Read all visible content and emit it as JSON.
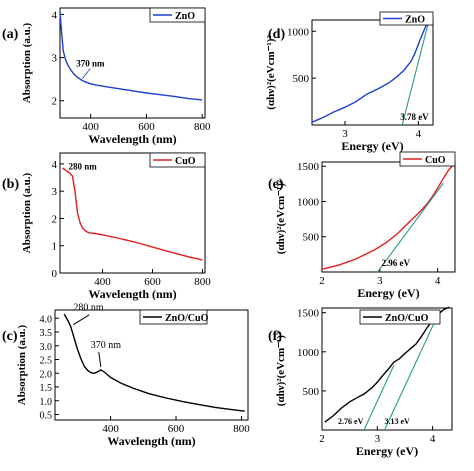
{
  "chart_data": [
    {
      "id": "a",
      "type": "line",
      "panel_label": "(a)",
      "xlabel": "Wavelength (nm)",
      "ylabel": "Absorption (a.u.)",
      "xlim": [
        290,
        810
      ],
      "ylim": [
        1.6,
        4.15
      ],
      "xticks": [
        400,
        600,
        800
      ],
      "yticks": [
        2,
        3,
        4
      ],
      "legend": "top-right",
      "grid": false,
      "series": [
        {
          "name": "ZnO",
          "color": "#1f3fd1",
          "x": [
            290,
            296,
            302,
            310,
            320,
            330,
            340,
            350,
            360,
            370,
            380,
            400,
            430,
            460,
            500,
            550,
            600,
            650,
            700,
            750,
            800
          ],
          "y": [
            4.05,
            3.55,
            3.15,
            2.95,
            2.8,
            2.7,
            2.62,
            2.56,
            2.51,
            2.47,
            2.44,
            2.39,
            2.35,
            2.32,
            2.28,
            2.23,
            2.18,
            2.14,
            2.1,
            2.05,
            2.02
          ]
        }
      ],
      "annotations": [
        {
          "text": "370 nm",
          "x": 370,
          "y": 2.47,
          "color": "#1f3fd1"
        }
      ]
    },
    {
      "id": "b",
      "type": "line",
      "panel_label": "(b)",
      "xlabel": "Wavelength (nm)",
      "ylabel": "Absorption (a.u.)",
      "xlim": [
        230,
        810
      ],
      "ylim": [
        0,
        4.4
      ],
      "xticks": [
        400,
        600,
        800
      ],
      "yticks": [
        0,
        1,
        2,
        3,
        4
      ],
      "legend": "top-right",
      "grid": false,
      "series": [
        {
          "name": "CuO",
          "color": "#e02020",
          "x": [
            240,
            255,
            270,
            280,
            290,
            300,
            310,
            320,
            330,
            340,
            350,
            370,
            400,
            450,
            500,
            550,
            600,
            650,
            700,
            750,
            800
          ],
          "y": [
            3.85,
            3.75,
            3.65,
            3.55,
            3.0,
            2.2,
            1.85,
            1.65,
            1.55,
            1.5,
            1.47,
            1.45,
            1.4,
            1.3,
            1.2,
            1.08,
            0.95,
            0.82,
            0.7,
            0.58,
            0.48
          ]
        }
      ],
      "annotations": [
        {
          "text": "280 nm",
          "x": 280,
          "y": 3.65,
          "color": "#e02020"
        }
      ]
    },
    {
      "id": "c",
      "type": "line",
      "panel_label": "(c)",
      "xlabel": "Wavelength (nm)",
      "ylabel": "Absorption (a.u.)",
      "xlim": [
        230,
        820
      ],
      "ylim": [
        0.3,
        4.3
      ],
      "xticks": [
        400,
        600,
        800
      ],
      "yticks": [
        0.5,
        1.0,
        1.5,
        2.0,
        2.5,
        3.0,
        3.5,
        4.0
      ],
      "ytick_labels": [
        "0.5",
        "1.0",
        "1.5",
        "2.0",
        "2.5",
        "3.0",
        "3.5",
        "4.0"
      ],
      "legend": "top-right",
      "grid": false,
      "series": [
        {
          "name": "ZnO/CuO",
          "color": "#000000",
          "x": [
            258,
            268,
            278,
            288,
            298,
            310,
            320,
            330,
            340,
            350,
            360,
            370,
            380,
            390,
            400,
            430,
            470,
            520,
            570,
            620,
            670,
            720,
            770,
            810
          ],
          "y": [
            4.15,
            3.95,
            3.7,
            3.3,
            2.9,
            2.5,
            2.25,
            2.1,
            2.02,
            2.0,
            2.05,
            2.12,
            2.05,
            1.95,
            1.85,
            1.65,
            1.45,
            1.25,
            1.1,
            0.97,
            0.86,
            0.76,
            0.68,
            0.62
          ]
        }
      ],
      "annotations": [
        {
          "text": "280 nm",
          "x": 280,
          "y": 3.62,
          "color": "#000000"
        },
        {
          "text": "370 nm",
          "x": 370,
          "y": 2.12,
          "color": "#000000"
        }
      ]
    },
    {
      "id": "d",
      "type": "line",
      "panel_label": "(d)",
      "xlabel": "Energy (eV)",
      "ylabel": "(αhν)²(eVcm⁻¹)²",
      "xlim": [
        2.55,
        4.2
      ],
      "ylim": [
        0,
        1120
      ],
      "xticks": [
        3,
        4
      ],
      "yticks": [
        0,
        500,
        1000
      ],
      "ytick_labels": [
        "",
        "500",
        "1000"
      ],
      "legend": "top-right",
      "grid": false,
      "series": [
        {
          "name": "ZnO",
          "color": "#1f3fd1",
          "x": [
            2.55,
            2.7,
            2.85,
            3.0,
            3.15,
            3.3,
            3.45,
            3.6,
            3.7,
            3.8,
            3.9,
            3.95,
            4.0,
            4.05,
            4.1,
            4.13
          ],
          "y": [
            30,
            80,
            140,
            190,
            250,
            330,
            385,
            450,
            510,
            580,
            680,
            760,
            860,
            960,
            1050,
            1100
          ]
        },
        {
          "name": "tangent",
          "color": "#2a9a8a",
          "x": [
            3.78,
            4.14
          ],
          "y": [
            0,
            1100
          ]
        }
      ],
      "annotations": [
        {
          "text": "3.78 eV",
          "x": 3.78,
          "y": 0,
          "color": "#1f3fd1"
        }
      ]
    },
    {
      "id": "e",
      "type": "line",
      "panel_label": "(e)",
      "xlabel": "Energy (eV)",
      "ylabel": "(αhν)²(eVcm⁻¹)²",
      "xlim": [
        2.0,
        4.3
      ],
      "ylim": [
        0,
        1560
      ],
      "xticks": [
        2,
        3,
        4
      ],
      "yticks": [
        0,
        500,
        1000,
        1500
      ],
      "ytick_labels": [
        "",
        "500",
        "1000",
        "1500"
      ],
      "legend": "top-right",
      "grid": false,
      "series": [
        {
          "name": "CuO",
          "color": "#e02020",
          "x": [
            2.0,
            2.3,
            2.6,
            2.9,
            3.1,
            3.3,
            3.5,
            3.7,
            3.8,
            3.9,
            4.0,
            4.1,
            4.2,
            4.28
          ],
          "y": [
            40,
            100,
            190,
            310,
            410,
            540,
            700,
            860,
            950,
            1060,
            1190,
            1330,
            1460,
            1520
          ]
        },
        {
          "name": "tangent",
          "color": "#2a9a8a",
          "x": [
            2.96,
            4.1
          ],
          "y": [
            0,
            1260
          ]
        }
      ],
      "annotations": [
        {
          "text": "2.96 eV",
          "x": 2.96,
          "y": 0,
          "color": "#e02020"
        }
      ]
    },
    {
      "id": "f",
      "type": "line",
      "panel_label": "(f)",
      "xlabel": "Energy (eV)",
      "ylabel": "(αhν)²(eVcm⁻¹)²",
      "xlim": [
        2.0,
        4.35
      ],
      "ylim": [
        0,
        1560
      ],
      "xticks": [
        2,
        3,
        4
      ],
      "yticks": [
        0,
        500,
        1000,
        1500
      ],
      "ytick_labels": [
        "",
        "500",
        "1000",
        "1500"
      ],
      "legend": "top-right",
      "grid": false,
      "series": [
        {
          "name": "ZnO/CuO",
          "color": "#000000",
          "x": [
            2.05,
            2.2,
            2.35,
            2.5,
            2.65,
            2.76,
            2.9,
            3.0,
            3.1,
            3.2,
            3.3,
            3.4,
            3.5,
            3.6,
            3.7,
            3.8,
            3.9,
            4.0,
            4.1,
            4.2,
            4.3
          ],
          "y": [
            100,
            180,
            280,
            360,
            420,
            460,
            540,
            610,
            700,
            780,
            870,
            910,
            980,
            1040,
            1100,
            1200,
            1310,
            1400,
            1480,
            1540,
            1570
          ]
        },
        {
          "name": "tangent1",
          "color": "#2a9a8a",
          "x": [
            2.76,
            3.3
          ],
          "y": [
            0,
            830
          ]
        },
        {
          "name": "tangent2",
          "color": "#2a9a8a",
          "x": [
            3.13,
            4.1
          ],
          "y": [
            0,
            1480
          ]
        }
      ],
      "annotations": [
        {
          "text": "2.76 eV",
          "x": 2.76,
          "y": 0,
          "color": "#000000"
        },
        {
          "text": "3.13 eV",
          "x": 3.13,
          "y": 0,
          "color": "#000000"
        }
      ]
    }
  ]
}
